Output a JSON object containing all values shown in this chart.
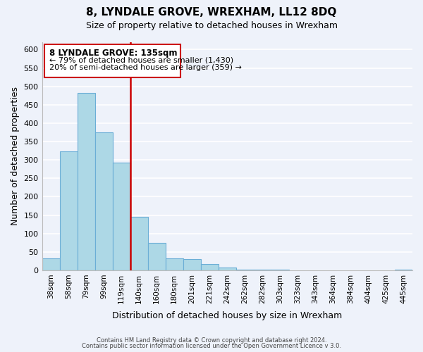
{
  "title": "8, LYNDALE GROVE, WREXHAM, LL12 8DQ",
  "subtitle": "Size of property relative to detached houses in Wrexham",
  "xlabel": "Distribution of detached houses by size in Wrexham",
  "ylabel": "Number of detached properties",
  "bar_color": "#add8e6",
  "bar_edge_color": "#6baed6",
  "background_color": "#eef2fa",
  "grid_color": "#ffffff",
  "bin_labels": [
    "38sqm",
    "58sqm",
    "79sqm",
    "99sqm",
    "119sqm",
    "140sqm",
    "160sqm",
    "180sqm",
    "201sqm",
    "221sqm",
    "242sqm",
    "262sqm",
    "282sqm",
    "303sqm",
    "323sqm",
    "343sqm",
    "364sqm",
    "384sqm",
    "404sqm",
    "425sqm",
    "445sqm"
  ],
  "bar_heights": [
    32,
    323,
    483,
    375,
    293,
    145,
    75,
    32,
    30,
    17,
    8,
    2,
    1,
    1,
    0,
    0,
    0,
    0,
    0,
    0,
    2
  ],
  "ylim": [
    0,
    620
  ],
  "yticks": [
    0,
    50,
    100,
    150,
    200,
    250,
    300,
    350,
    400,
    450,
    500,
    550,
    600
  ],
  "vline_x": 5.0,
  "property_label": "8 LYNDALE GROVE: 135sqm",
  "annotation_line1": "← 79% of detached houses are smaller (1,430)",
  "annotation_line2": "20% of semi-detached houses are larger (359) →",
  "annotation_box_color": "#ffffff",
  "annotation_box_edge": "#cc0000",
  "vline_color": "#cc0000",
  "footer1": "Contains HM Land Registry data © Crown copyright and database right 2024.",
  "footer2": "Contains public sector information licensed under the Open Government Licence v 3.0."
}
